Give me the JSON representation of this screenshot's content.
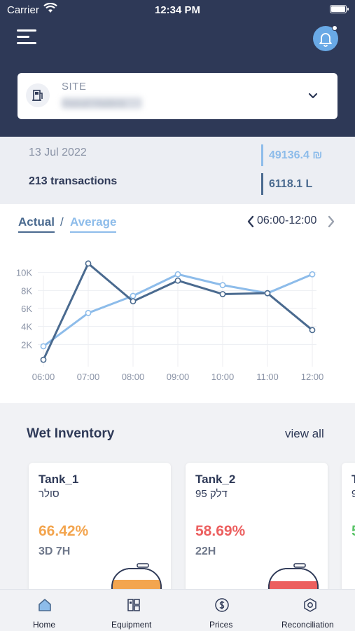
{
  "statusbar": {
    "carrier": "Carrier",
    "time": "12:34 PM"
  },
  "header": {
    "menu_icon": "hamburger-menu-icon",
    "bell_icon": "bell-icon"
  },
  "site": {
    "label": "SITE",
    "value": "Dasud Hadera"
  },
  "summary": {
    "date": "13 Jul 2022",
    "transactions": "213 transactions",
    "amount": "49136.4 ₪",
    "liters": "6118.1 L"
  },
  "chart_tabs": {
    "actual": "Actual",
    "separator": "/",
    "average": "Average",
    "range": "06:00-12:00"
  },
  "chart_data": {
    "type": "line",
    "x": [
      "06:00",
      "07:00",
      "08:00",
      "09:00",
      "10:00",
      "11:00",
      "12:00"
    ],
    "yticks": [
      "2K",
      "4K",
      "6K",
      "8K",
      "10K"
    ],
    "ylim": [
      0,
      12000
    ],
    "grid": true,
    "series": [
      {
        "name": "Actual",
        "color": "#4a6a8f",
        "values": [
          300,
          11000,
          6800,
          9100,
          7600,
          7700,
          3600
        ]
      },
      {
        "name": "Average",
        "color": "#8dbcea",
        "values": [
          1800,
          5500,
          7400,
          9800,
          8600,
          7700,
          9800
        ]
      }
    ]
  },
  "inventory": {
    "title": "Wet Inventory",
    "view_all": "view all",
    "tanks": [
      {
        "name": "Tank_1",
        "fuel": "סולר",
        "percent": "66.42%",
        "time_left": "3D 7H",
        "color": "#f3a54f"
      },
      {
        "name": "Tank_2",
        "fuel": "95 דלק",
        "percent": "58.69%",
        "time_left": "22H",
        "color": "#ec5f5f"
      },
      {
        "name": "T",
        "fuel": "9",
        "percent": "5",
        "time_left": "",
        "color": "#5cc56a"
      }
    ]
  },
  "tabbar": {
    "items": [
      {
        "label": "Home",
        "icon": "home-icon"
      },
      {
        "label": "Equipment",
        "icon": "equipment-icon"
      },
      {
        "label": "Prices",
        "icon": "dollar-icon"
      },
      {
        "label": "Reconciliation",
        "icon": "gear-hexagon-icon"
      }
    ]
  }
}
